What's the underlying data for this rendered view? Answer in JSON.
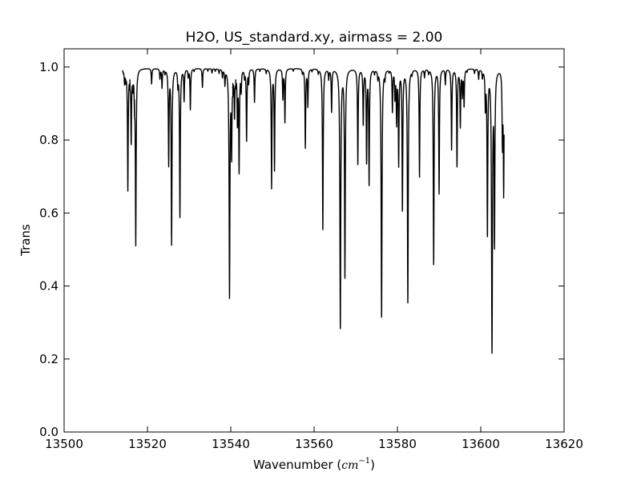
{
  "chart_data": {
    "type": "line",
    "title": "H2O, US_standard.xy, airmass = 2.00",
    "xlabel": {
      "prefix": "Wavenumber (",
      "unit_base": "cm",
      "unit_exponent": "−1",
      "suffix": ")"
    },
    "ylabel": "Trans",
    "xlim": [
      13500,
      13620
    ],
    "ylim": [
      0.0,
      1.05
    ],
    "xticks": [
      13500,
      13520,
      13540,
      13560,
      13580,
      13600,
      13620
    ],
    "yticks": [
      0.0,
      0.2,
      0.4,
      0.6,
      0.8,
      1.0
    ],
    "xtick_labels": [
      "13500",
      "13520",
      "13540",
      "13560",
      "13580",
      "13600",
      "13620"
    ],
    "ytick_labels": [
      "0.0",
      "0.2",
      "0.4",
      "0.6",
      "0.8",
      "1.0"
    ],
    "grid": false,
    "line_color": "#000000",
    "series": [
      {
        "x_range": [
          13514.0,
          13605.6
        ],
        "baseline": 0.997,
        "absorption_lines": [
          {
            "x": 13514.2,
            "y": 0.99
          },
          {
            "x": 13514.5,
            "y": 0.96
          },
          {
            "x": 13514.8,
            "y": 0.97
          },
          {
            "x": 13515.3,
            "y": 0.665
          },
          {
            "x": 13515.8,
            "y": 0.97
          },
          {
            "x": 13516.1,
            "y": 0.795
          },
          {
            "x": 13516.5,
            "y": 0.955
          },
          {
            "x": 13516.9,
            "y": 0.915
          },
          {
            "x": 13517.2,
            "y": 0.515
          },
          {
            "x": 13521.0,
            "y": 0.955
          },
          {
            "x": 13523.0,
            "y": 0.97
          },
          {
            "x": 13523.5,
            "y": 0.945
          },
          {
            "x": 13524.2,
            "y": 0.985
          },
          {
            "x": 13525.1,
            "y": 0.735
          },
          {
            "x": 13525.8,
            "y": 0.515
          },
          {
            "x": 13527.3,
            "y": 0.955
          },
          {
            "x": 13527.8,
            "y": 0.59
          },
          {
            "x": 13528.8,
            "y": 0.91
          },
          {
            "x": 13529.8,
            "y": 0.975
          },
          {
            "x": 13530.3,
            "y": 0.885
          },
          {
            "x": 13531.2,
            "y": 0.99
          },
          {
            "x": 13533.2,
            "y": 0.945
          },
          {
            "x": 13534.5,
            "y": 0.99
          },
          {
            "x": 13535.5,
            "y": 0.985
          },
          {
            "x": 13536.3,
            "y": 0.99
          },
          {
            "x": 13537.2,
            "y": 0.985
          },
          {
            "x": 13538.0,
            "y": 0.975
          },
          {
            "x": 13538.6,
            "y": 0.955
          },
          {
            "x": 13539.7,
            "y": 0.37
          },
          {
            "x": 13540.2,
            "y": 0.765
          },
          {
            "x": 13540.5,
            "y": 0.96
          },
          {
            "x": 13540.9,
            "y": 0.87
          },
          {
            "x": 13541.2,
            "y": 0.97
          },
          {
            "x": 13541.6,
            "y": 0.85
          },
          {
            "x": 13542.0,
            "y": 0.715
          },
          {
            "x": 13542.5,
            "y": 0.94
          },
          {
            "x": 13543.3,
            "y": 0.975
          },
          {
            "x": 13543.8,
            "y": 0.8
          },
          {
            "x": 13544.3,
            "y": 0.96
          },
          {
            "x": 13545.7,
            "y": 0.905
          },
          {
            "x": 13547.0,
            "y": 0.99
          },
          {
            "x": 13548.5,
            "y": 0.985
          },
          {
            "x": 13549.8,
            "y": 0.67
          },
          {
            "x": 13550.5,
            "y": 0.72
          },
          {
            "x": 13552.5,
            "y": 0.915
          },
          {
            "x": 13553.0,
            "y": 0.85
          },
          {
            "x": 13555.0,
            "y": 0.99
          },
          {
            "x": 13557.2,
            "y": 0.985
          },
          {
            "x": 13557.9,
            "y": 0.78
          },
          {
            "x": 13558.5,
            "y": 0.895
          },
          {
            "x": 13559.5,
            "y": 0.99
          },
          {
            "x": 13561.0,
            "y": 0.985
          },
          {
            "x": 13562.1,
            "y": 0.555
          },
          {
            "x": 13563.5,
            "y": 0.97
          },
          {
            "x": 13564.2,
            "y": 0.88
          },
          {
            "x": 13566.3,
            "y": 0.285
          },
          {
            "x": 13567.4,
            "y": 0.425
          },
          {
            "x": 13570.5,
            "y": 0.735
          },
          {
            "x": 13571.8,
            "y": 0.845
          },
          {
            "x": 13572.6,
            "y": 0.74
          },
          {
            "x": 13573.2,
            "y": 0.68
          },
          {
            "x": 13574.5,
            "y": 0.985
          },
          {
            "x": 13575.3,
            "y": 0.975
          },
          {
            "x": 13576.2,
            "y": 0.315
          },
          {
            "x": 13577.0,
            "y": 0.975
          },
          {
            "x": 13578.0,
            "y": 0.99
          },
          {
            "x": 13578.8,
            "y": 0.88
          },
          {
            "x": 13579.4,
            "y": 0.92
          },
          {
            "x": 13579.8,
            "y": 0.85
          },
          {
            "x": 13580.3,
            "y": 0.735
          },
          {
            "x": 13581.2,
            "y": 0.61
          },
          {
            "x": 13582.5,
            "y": 0.355
          },
          {
            "x": 13583.5,
            "y": 0.985
          },
          {
            "x": 13585.3,
            "y": 0.7
          },
          {
            "x": 13586.5,
            "y": 0.975
          },
          {
            "x": 13587.5,
            "y": 0.985
          },
          {
            "x": 13588.7,
            "y": 0.46
          },
          {
            "x": 13590.0,
            "y": 0.655
          },
          {
            "x": 13591.5,
            "y": 0.955
          },
          {
            "x": 13593.0,
            "y": 0.775
          },
          {
            "x": 13594.3,
            "y": 0.73
          },
          {
            "x": 13595.1,
            "y": 0.84
          },
          {
            "x": 13595.6,
            "y": 0.925
          },
          {
            "x": 13596.0,
            "y": 0.895
          },
          {
            "x": 13596.7,
            "y": 0.99
          },
          {
            "x": 13598.5,
            "y": 0.985
          },
          {
            "x": 13599.5,
            "y": 0.97
          },
          {
            "x": 13600.4,
            "y": 0.975
          },
          {
            "x": 13601.1,
            "y": 0.895
          },
          {
            "x": 13601.6,
            "y": 0.54
          },
          {
            "x": 13602.7,
            "y": 0.22
          },
          {
            "x": 13603.3,
            "y": 0.515
          },
          {
            "x": 13605.2,
            "y": 0.795
          },
          {
            "x": 13605.5,
            "y": 0.655
          }
        ]
      }
    ]
  }
}
